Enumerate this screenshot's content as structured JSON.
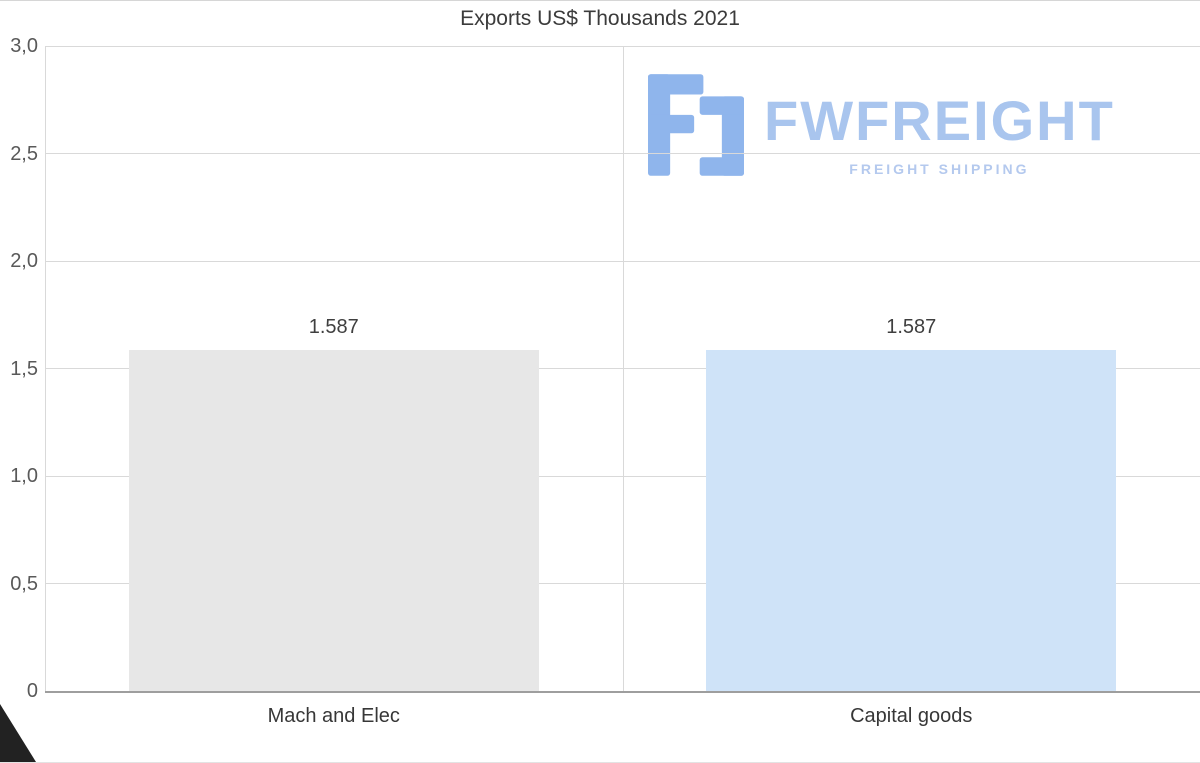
{
  "chart_data": {
    "type": "bar",
    "title": "Exports US$ Thousands 2021",
    "categories": [
      "Mach and Elec",
      "Capital goods"
    ],
    "values": [
      1.587,
      1.587
    ],
    "bar_labels": [
      "1.587",
      "1.587"
    ],
    "bar_colors": [
      "#e7e7e7",
      "#cfe3f8"
    ],
    "ylim": [
      0,
      3
    ],
    "yticks": [
      {
        "value": 3.0,
        "label": "3,0"
      },
      {
        "value": 2.5,
        "label": "2,5"
      },
      {
        "value": 2.0,
        "label": "2,0"
      },
      {
        "value": 1.5,
        "label": "1,5"
      },
      {
        "value": 1.0,
        "label": "1,0"
      },
      {
        "value": 0.5,
        "label": "0,5"
      },
      {
        "value": 0.0,
        "label": "0"
      }
    ],
    "grid": true,
    "legend": "none",
    "xlabel": "",
    "ylabel": ""
  },
  "watermark": {
    "brand": "FWFREIGHT",
    "tagline": "FREIGHT SHIPPING",
    "icon": "fw-logo-icon",
    "icon_color": "#8fb5ec",
    "text_color": "#a9c5ee"
  },
  "colors": {
    "title": "#3b3b3b",
    "axis_label": "#595959",
    "gridline": "#d9d9d9",
    "axis_line": "#9e9e9e",
    "value_label": "#3f3f3f",
    "category_label": "#373737",
    "background": "#ffffff"
  }
}
